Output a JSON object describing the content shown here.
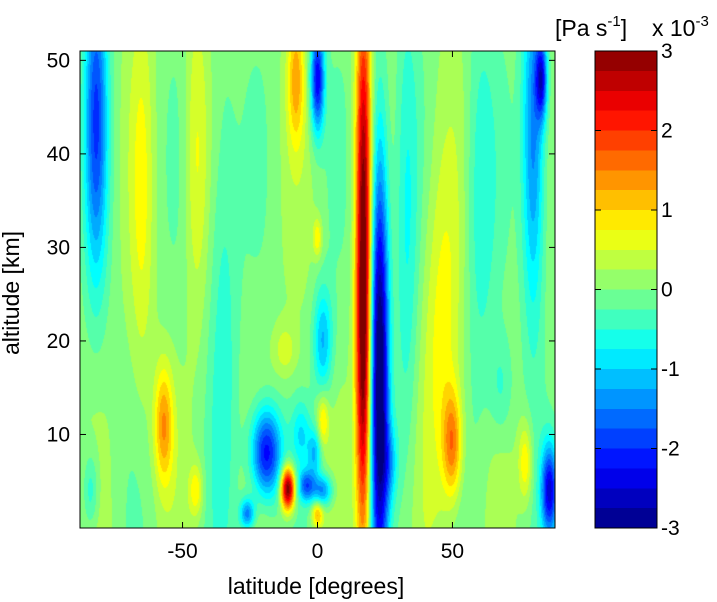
{
  "chart_data": {
    "type": "heatmap",
    "xlabel": "latitude [degrees]",
    "ylabel": "altitude [km]",
    "colorbar_label": "[Pa s",
    "colorbar_label_exp": "-1",
    "colorbar_label_end": "]",
    "colorbar_scale": "x 10",
    "colorbar_scale_exp": "-3",
    "xlim": [
      -88,
      88
    ],
    "ylim": [
      0,
      51
    ],
    "clim": [
      -3,
      3
    ],
    "colormap": "jet",
    "x_ticks": [
      -50,
      0,
      50
    ],
    "x_tick_labels": [
      "-50",
      "0",
      "50"
    ],
    "y_ticks": [
      10,
      20,
      30,
      40,
      50
    ],
    "y_tick_labels": [
      "10",
      "20",
      "30",
      "40",
      "50"
    ],
    "colorbar_ticks": [
      3,
      2,
      1,
      0,
      -1,
      -2,
      -3
    ],
    "colorbar_tick_labels": [
      "3",
      "2",
      "1",
      "0",
      "-1",
      "-2",
      "-3"
    ],
    "background_value": 0.05,
    "features": [
      {
        "lat": 17,
        "alt": 20,
        "sx": 2.0,
        "sy": 16,
        "value": 3.2
      },
      {
        "lat": 17,
        "alt": 45,
        "sx": 2.0,
        "sy": 12,
        "value": 1.4
      },
      {
        "lat": 23,
        "alt": 17,
        "sx": 2.4,
        "sy": 17,
        "value": -3.4
      },
      {
        "lat": -11,
        "alt": 4.2,
        "sx": 1.8,
        "sy": 1.6,
        "value": 3.3
      },
      {
        "lat": -19,
        "alt": 8,
        "sx": 4.0,
        "sy": 3.4,
        "value": -2.4
      },
      {
        "lat": -4,
        "alt": 4.5,
        "sx": 2.2,
        "sy": 1.2,
        "value": -1.6
      },
      {
        "lat": 2,
        "alt": 4.0,
        "sx": 2.5,
        "sy": 1.2,
        "value": -1.5
      },
      {
        "lat": -1,
        "alt": 8,
        "sx": 1.8,
        "sy": 1.8,
        "value": -1.1
      },
      {
        "lat": 2,
        "alt": 11.5,
        "sx": 1.5,
        "sy": 2.0,
        "value": 0.9
      },
      {
        "lat": 2,
        "alt": 20,
        "sx": 2.5,
        "sy": 4.0,
        "value": -1.2
      },
      {
        "lat": 0,
        "alt": 48,
        "sx": 1.8,
        "sy": 4.0,
        "value": -2.4
      },
      {
        "lat": -8,
        "alt": 48,
        "sx": 2.2,
        "sy": 5.0,
        "value": 1.1
      },
      {
        "lat": -57,
        "alt": 11,
        "sx": 2.5,
        "sy": 4.5,
        "value": 1.3
      },
      {
        "lat": 50,
        "alt": 9,
        "sx": 2.5,
        "sy": 4.0,
        "value": 1.4
      },
      {
        "lat": 46,
        "alt": 20,
        "sx": 5.0,
        "sy": 14,
        "value": 0.7
      },
      {
        "lat": 86,
        "alt": 4,
        "sx": 2.2,
        "sy": 3.5,
        "value": -2.4
      },
      {
        "lat": 77,
        "alt": 7,
        "sx": 1.8,
        "sy": 3.0,
        "value": 0.9
      },
      {
        "lat": -82,
        "alt": 44,
        "sx": 3.0,
        "sy": 12,
        "value": -1.8
      },
      {
        "lat": 80,
        "alt": 42,
        "sx": 3.0,
        "sy": 14,
        "value": -1.7
      },
      {
        "lat": 83,
        "alt": 48,
        "sx": 1.5,
        "sy": 3.0,
        "value": -2.0
      },
      {
        "lat": -45,
        "alt": 40,
        "sx": 3.0,
        "sy": 12,
        "value": 0.6
      },
      {
        "lat": -35,
        "alt": 25,
        "sx": 4.0,
        "sy": 20,
        "value": -0.6
      },
      {
        "lat": -65,
        "alt": 35,
        "sx": 3.0,
        "sy": 15,
        "value": 0.5
      },
      {
        "lat": 60,
        "alt": 35,
        "sx": 4.0,
        "sy": 15,
        "value": -0.6
      },
      {
        "lat": 33,
        "alt": 30,
        "sx": 3.0,
        "sy": 20,
        "value": -0.6
      },
      {
        "lat": -26,
        "alt": 1.5,
        "sx": 2.0,
        "sy": 1.2,
        "value": -1.6
      },
      {
        "lat": 0,
        "alt": 1.5,
        "sx": 1.5,
        "sy": 1.0,
        "value": 1.2
      },
      {
        "lat": -45,
        "alt": 4,
        "sx": 1.8,
        "sy": 2.0,
        "value": 0.8
      },
      {
        "lat": -6,
        "alt": 10,
        "sx": 2.5,
        "sy": 2.5,
        "value": -0.8
      },
      {
        "lat": 0,
        "alt": 31,
        "sx": 1.2,
        "sy": 1.5,
        "value": 0.8
      },
      {
        "lat": -12,
        "alt": 19,
        "sx": 3.0,
        "sy": 2.0,
        "value": 0.5
      },
      {
        "lat": 68,
        "alt": 15,
        "sx": 3.0,
        "sy": 4.0,
        "value": -0.5
      },
      {
        "lat": -84,
        "alt": 4,
        "sx": 2.0,
        "sy": 3.0,
        "value": -0.7
      },
      {
        "lat": 27,
        "alt": 7,
        "sx": 2.0,
        "sy": 3.0,
        "value": -0.8
      }
    ]
  }
}
